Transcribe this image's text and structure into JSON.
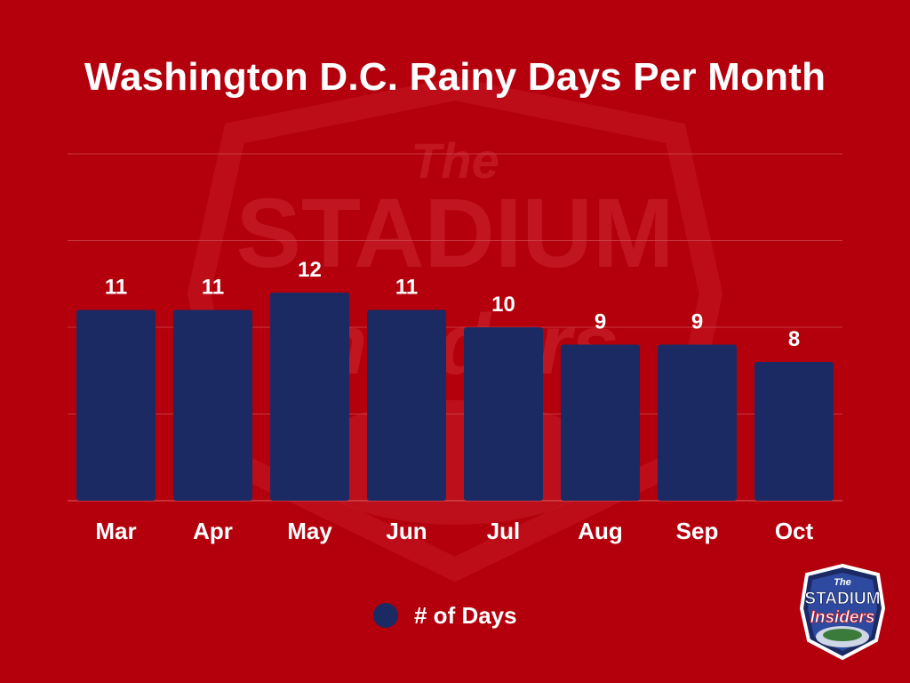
{
  "colors": {
    "background": "#b3000c",
    "bar": "#1c2a63",
    "text": "#ffffff",
    "grid": "#cf4a52"
  },
  "watermark": {
    "word_top": "The",
    "word_main": "STADIUM",
    "word_script": "Insiders"
  },
  "logo": {
    "word_top": "The",
    "word_main": "STADIUM",
    "word_script": "Insiders"
  },
  "chart_data": {
    "type": "bar",
    "title": "Washington D.C. Rainy Days Per Month",
    "categories": [
      "Mar",
      "Apr",
      "May",
      "Jun",
      "Jul",
      "Aug",
      "Sep",
      "Oct"
    ],
    "series": [
      {
        "name": "# of Days",
        "values": [
          11,
          11,
          12,
          11,
          10,
          9,
          9,
          8
        ]
      }
    ],
    "ylim": [
      0,
      20
    ],
    "grid": true,
    "legend": "bottom-center",
    "data_labels": true
  }
}
